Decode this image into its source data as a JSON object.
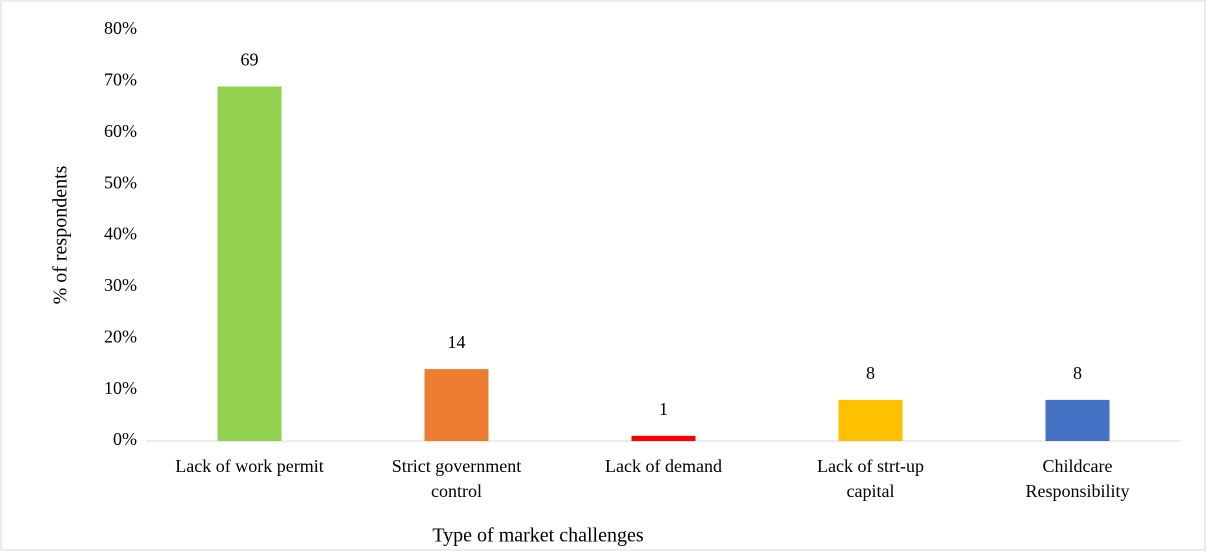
{
  "chart_data": {
    "type": "bar",
    "x_label": "Type of market challenges",
    "y_label": "% of respondents",
    "categories": [
      "Lack of work permit",
      "Strict government control",
      "Lack of demand",
      "Lack of strt-up capital",
      "Childcare Responsibility"
    ],
    "values": [
      69,
      14,
      1,
      8,
      8
    ],
    "colors": [
      "#92d050",
      "#ed7d31",
      "#ff0000",
      "#ffc000",
      "#4472c4"
    ],
    "ylim": [
      0,
      80
    ],
    "yticks": [
      {
        "value": 0,
        "label": "0%"
      },
      {
        "value": 10,
        "label": "10%"
      },
      {
        "value": 20,
        "label": "20%"
      },
      {
        "value": 30,
        "label": "30%"
      },
      {
        "value": 40,
        "label": "40%"
      },
      {
        "value": 50,
        "label": "50%"
      },
      {
        "value": 60,
        "label": "60%"
      },
      {
        "value": 70,
        "label": "70%"
      },
      {
        "value": 80,
        "label": "80%"
      }
    ],
    "grid": false
  }
}
